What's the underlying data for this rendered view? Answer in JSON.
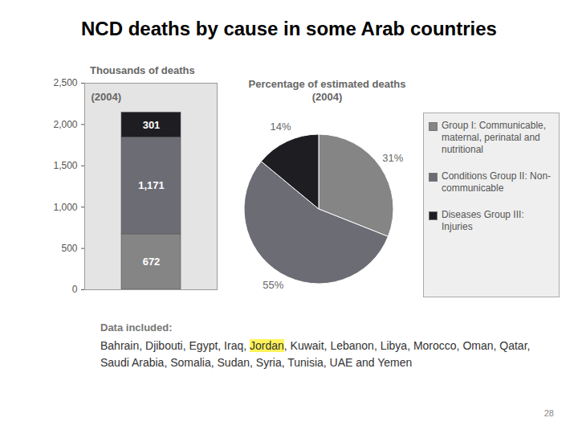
{
  "title": "NCD deaths by cause in some Arab countries",
  "chart_data": [
    {
      "type": "bar",
      "title": "Thousands of deaths",
      "subtitle": "(2004)",
      "categories": [
        null
      ],
      "series": [
        {
          "name": "Group I: Communicable, maternal, perinatal and nutritional",
          "color": "#858585",
          "values": [
            672
          ]
        },
        {
          "name": "Conditions Group II: Non-communicable",
          "color": "#6c6c75",
          "values": [
            1171
          ],
          "value_labels": [
            "1,171"
          ]
        },
        {
          "name": "Diseases Group III: Injuries",
          "color": "#1e1e22",
          "values": [
            301
          ]
        }
      ],
      "stacked": true,
      "data_labels": true,
      "tick_labels": "y",
      "ylim": [
        0,
        2500
      ],
      "yticks": [
        0,
        500,
        {
          "value": 1000,
          "label": "1,000"
        },
        {
          "value": 1500,
          "label": "1,500"
        },
        {
          "value": 2000,
          "label": "2,000"
        },
        {
          "value": 2500,
          "label": "2,500"
        }
      ]
    },
    {
      "type": "pie",
      "title": "Percentage of estimated deaths (2004)",
      "categories": [
        "Group I: Communicable, maternal, perinatal and nutritional",
        "Conditions Group II: Non-communicable",
        "Diseases Group III: Injuries"
      ],
      "values": [
        31,
        55,
        14
      ],
      "value_labels": [
        "31%",
        "55%",
        "14%"
      ],
      "colors": [
        "#858585",
        "#6c6c75",
        "#1e1e22"
      ],
      "data_labels": true,
      "legend": "right"
    }
  ],
  "note": {
    "label": "Data included:",
    "text": "Bahrain, Djibouti, Egypt, Iraq, Jordan, Kuwait, Lebanon, Libya, Morocco, Oman, Qatar,  Saudi Arabia, Somalia, Sudan, Syria, Tunisia, UAE and Yemen",
    "highlight": "Jordan"
  },
  "page_number": 28
}
